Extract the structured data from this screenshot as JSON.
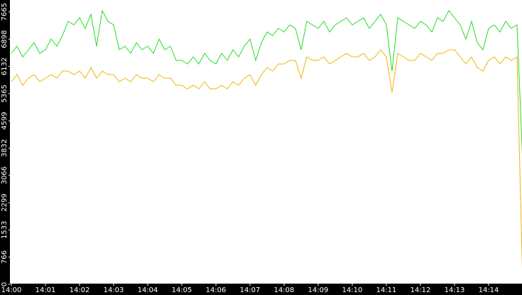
{
  "chart_data": {
    "type": "line",
    "categories": [
      "14:00",
      null,
      null,
      null,
      null,
      null,
      "14:01",
      null,
      null,
      null,
      null,
      null,
      "14:02",
      null,
      null,
      null,
      null,
      null,
      "14:03",
      null,
      null,
      null,
      null,
      null,
      "14:04",
      null,
      null,
      null,
      null,
      null,
      "14:05",
      null,
      null,
      null,
      null,
      null,
      "14:06",
      null,
      null,
      null,
      null,
      null,
      "14:07",
      null,
      null,
      null,
      null,
      null,
      "14:08",
      null,
      null,
      null,
      null,
      null,
      "14:09",
      null,
      null,
      null,
      null,
      null,
      "14:10",
      null,
      null,
      null,
      null,
      null,
      "14:11",
      null,
      null,
      null,
      null,
      null,
      "14:12",
      null,
      null,
      null,
      null,
      null,
      "14:13",
      null,
      null,
      null,
      null,
      null,
      "14:14",
      null,
      null,
      null,
      null,
      null,
      null
    ],
    "series": [
      {
        "name": "green",
        "color": "#22dd22",
        "values": [
          6500,
          6700,
          6400,
          6600,
          6800,
          6500,
          6600,
          6900,
          6700,
          7000,
          7400,
          7300,
          7500,
          7200,
          7600,
          6700,
          7700,
          7400,
          7300,
          6600,
          6700,
          6500,
          6800,
          6600,
          6700,
          6500,
          6900,
          6600,
          6700,
          6300,
          6300,
          6200,
          6400,
          6200,
          6500,
          6300,
          6200,
          6500,
          6300,
          6600,
          6400,
          6700,
          6900,
          6300,
          6800,
          7100,
          7000,
          7200,
          7100,
          7300,
          7200,
          6600,
          7400,
          7300,
          7200,
          7400,
          7100,
          7300,
          7400,
          7500,
          7300,
          7400,
          7500,
          7200,
          7400,
          7600,
          7300,
          6000,
          7500,
          7400,
          7300,
          7200,
          7400,
          7300,
          7100,
          7500,
          7400,
          7700,
          7500,
          7300,
          6900,
          7400,
          6800,
          6600,
          7200,
          7300,
          7100,
          7400,
          7200,
          7300,
          3400
        ]
      },
      {
        "name": "orange",
        "color": "#f0b400",
        "values": [
          5700,
          5900,
          5600,
          5800,
          5900,
          5700,
          5800,
          5900,
          5800,
          6000,
          6000,
          5900,
          6000,
          5800,
          6100,
          5800,
          6000,
          5900,
          5900,
          5700,
          5800,
          5700,
          5900,
          5800,
          5800,
          5700,
          5900,
          5800,
          5800,
          5600,
          5600,
          5500,
          5600,
          5500,
          5700,
          5500,
          5500,
          5600,
          5500,
          5700,
          5600,
          5800,
          5900,
          5600,
          5900,
          6100,
          6000,
          6200,
          6200,
          6300,
          6300,
          5800,
          6400,
          6300,
          6300,
          6400,
          6200,
          6300,
          6400,
          6500,
          6400,
          6400,
          6500,
          6300,
          6400,
          6600,
          6400,
          5400,
          6500,
          6400,
          6300,
          6300,
          6500,
          6400,
          6300,
          6500,
          6500,
          6600,
          6600,
          6400,
          6200,
          6400,
          6100,
          6000,
          6300,
          6400,
          6200,
          6400,
          6300,
          6400,
          0
        ]
      }
    ],
    "ylim": [
      0,
      8000
    ],
    "yticks": [
      0,
      766,
      1533,
      2299,
      3066,
      3832,
      4599,
      5365,
      6132,
      6898,
      7665
    ]
  }
}
